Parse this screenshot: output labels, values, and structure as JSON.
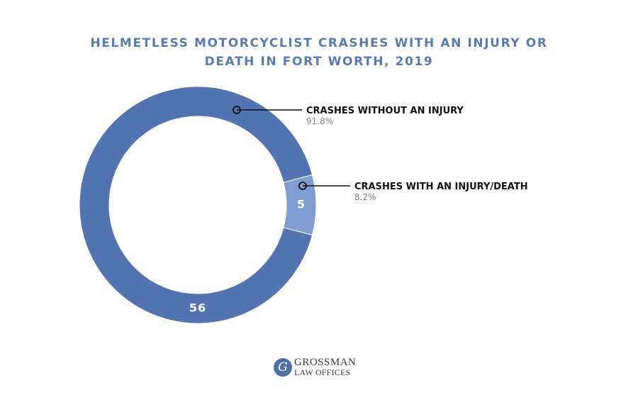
{
  "chart_data": {
    "type": "pie",
    "subtype": "donut",
    "title_lines": [
      "HELMETLESS MOTORCYCLIST CRASHES WITH AN INJURY OR",
      "DEATH IN FORT WORTH, 2019"
    ],
    "slices": [
      {
        "label": "CRASHES WITHOUT AN INJURY",
        "value": 56,
        "percent": "91.8%",
        "color": "#5275b1"
      },
      {
        "label": "CRASHES WITH AN INJURY/DEATH",
        "value": 5,
        "percent": "8.2%",
        "color": "#7f9dd1"
      }
    ]
  },
  "logo": {
    "mark": "G",
    "line1": "GROSSMAN",
    "line2": "LAW OFFICES"
  }
}
